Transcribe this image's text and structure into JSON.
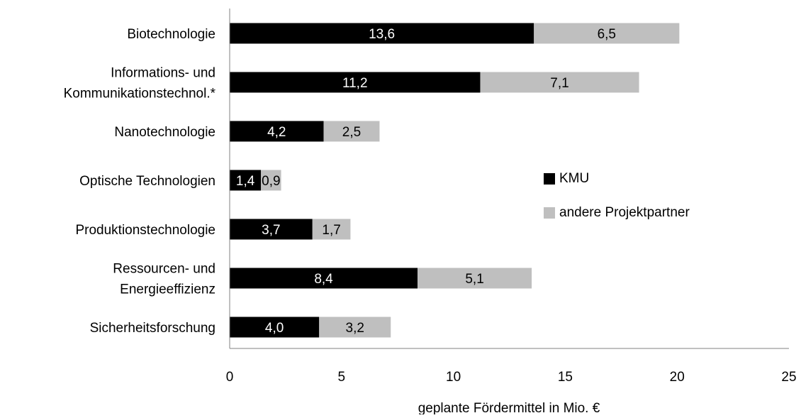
{
  "chart_data": {
    "type": "bar",
    "orientation": "horizontal",
    "stacked": true,
    "categories": [
      [
        "Biotechnologie"
      ],
      [
        "Informations- und",
        "Kommunikationstechnol.*"
      ],
      [
        "Nanotechnologie"
      ],
      [
        "Optische Technologien"
      ],
      [
        "Produktionstechnologie"
      ],
      [
        "Ressourcen- und",
        "Energieeffizienz"
      ],
      [
        "Sicherheitsforschung"
      ]
    ],
    "series": [
      {
        "name": "KMU",
        "color": "#000000",
        "label_color": "#ffffff",
        "values": [
          13.6,
          11.2,
          4.2,
          1.4,
          3.7,
          8.4,
          4.0
        ],
        "labels": [
          "13,6",
          "11,2",
          "4,2",
          "1,4",
          "3,7",
          "8,4",
          "4,0"
        ]
      },
      {
        "name": "andere Projektpartner",
        "color": "#bfbfbf",
        "label_color": "#000000",
        "values": [
          6.5,
          7.1,
          2.5,
          0.9,
          1.7,
          5.1,
          3.2
        ],
        "labels": [
          "6,5",
          "7,1",
          "2,5",
          "0,9",
          "1,7",
          "5,1",
          "3,2"
        ]
      }
    ],
    "xlabel": "geplante Fördermittel in Mio. €",
    "xlim": [
      0,
      25
    ],
    "xticks": [
      0,
      5,
      10,
      15,
      20,
      25
    ],
    "xtick_labels": [
      "0",
      "5",
      "10",
      "15",
      "20",
      "25"
    ],
    "grid": false,
    "legend_position": "right"
  }
}
